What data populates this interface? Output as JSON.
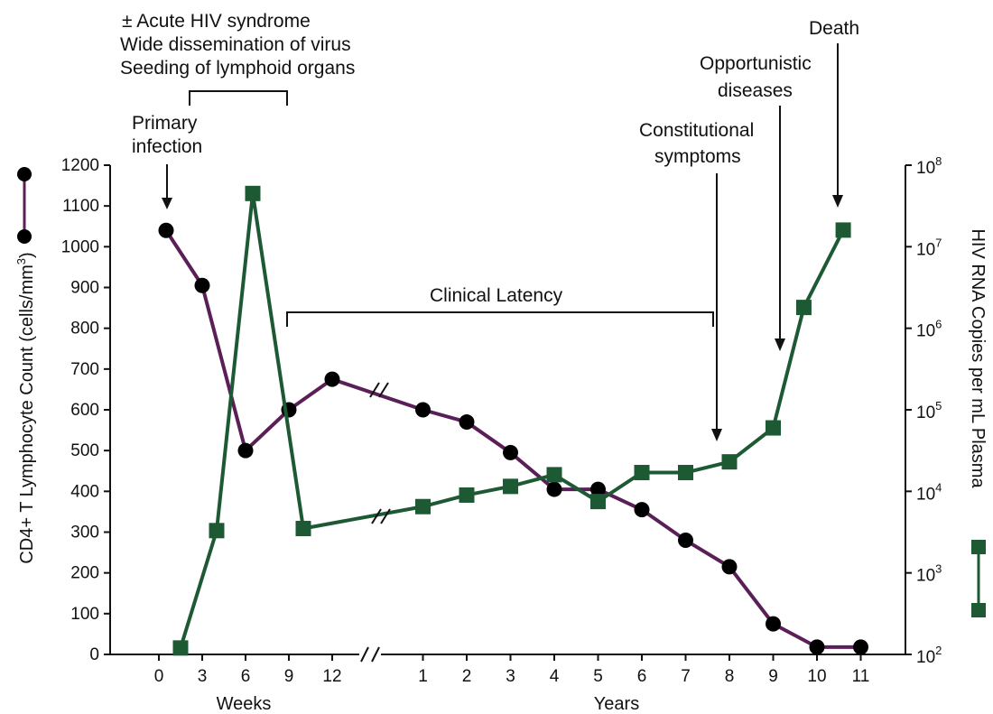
{
  "chart_data": {
    "type": "line",
    "dual_axis": true,
    "annotations": {
      "acute_1": "± Acute HIV syndrome",
      "acute_2": "Wide dissemination of virus",
      "acute_3": "Seeding of lymphoid organs",
      "primary_1": "Primary",
      "primary_2": "infection",
      "latency": "Clinical Latency",
      "constitutional_1": "Constitutional",
      "constitutional_2": "symptoms",
      "opportunistic_1": "Opportunistic",
      "opportunistic_2": "diseases",
      "death": "Death"
    },
    "x_axis": {
      "weeks_label": "Weeks",
      "years_label": "Years",
      "week_ticks": [
        "0",
        "3",
        "6",
        "9",
        "12"
      ],
      "year_ticks": [
        "1",
        "2",
        "3",
        "4",
        "5",
        "6",
        "7",
        "8",
        "9",
        "10",
        "11"
      ]
    },
    "y_left": {
      "label": "CD4+ T Lymphocyte Count (cells/mm",
      "label_sup": "3",
      "label_end": ")",
      "ylim": [
        0,
        1200
      ],
      "ticks": [
        "0",
        "100",
        "200",
        "300",
        "400",
        "500",
        "600",
        "700",
        "800",
        "900",
        "1000",
        "1100",
        "1200"
      ]
    },
    "y_right": {
      "label": "HIV RNA Copies per mL Plasma",
      "scale": "log",
      "ylim_exponent": [
        2,
        8
      ],
      "tick_base": "10",
      "tick_exponents": [
        "2",
        "3",
        "4",
        "5",
        "6",
        "7",
        "8"
      ]
    },
    "series": [
      {
        "key": "cd4",
        "axis": "left",
        "color": "#5b1f57",
        "marker_color": "#000000",
        "marker": "circle",
        "points": [
          {
            "x": "wk 0.5",
            "y": 1040
          },
          {
            "x": "wk 3",
            "y": 905
          },
          {
            "x": "wk 6",
            "y": 500
          },
          {
            "x": "wk 9",
            "y": 600
          },
          {
            "x": "wk 12",
            "y": 675
          },
          {
            "x": "yr 1",
            "y": 600
          },
          {
            "x": "yr 2",
            "y": 570
          },
          {
            "x": "yr 3",
            "y": 495
          },
          {
            "x": "yr 4",
            "y": 405
          },
          {
            "x": "yr 5",
            "y": 405
          },
          {
            "x": "yr 6",
            "y": 355
          },
          {
            "x": "yr 7",
            "y": 280
          },
          {
            "x": "yr 8",
            "y": 215
          },
          {
            "x": "yr 9",
            "y": 75
          },
          {
            "x": "yr 10",
            "y": 18
          },
          {
            "x": "yr 11",
            "y": 18
          }
        ]
      },
      {
        "key": "rna",
        "axis": "right",
        "color": "#1d5a34",
        "marker_color": "#1d5a34",
        "marker": "square",
        "points": [
          {
            "x": "wk 1.5",
            "y": 120
          },
          {
            "x": "wk 4",
            "y": 3300
          },
          {
            "x": "wk 6.5",
            "y": 45000000
          },
          {
            "x": "wk 10",
            "y": 3500
          },
          {
            "x": "yr 1",
            "y": 6500
          },
          {
            "x": "yr 2",
            "y": 9000
          },
          {
            "x": "yr 3",
            "y": 11500
          },
          {
            "x": "yr 4",
            "y": 16000
          },
          {
            "x": "yr 5",
            "y": 7500
          },
          {
            "x": "yr 6",
            "y": 17000
          },
          {
            "x": "yr 7",
            "y": 17000
          },
          {
            "x": "yr 8",
            "y": 23000
          },
          {
            "x": "yr 9",
            "y": 60000
          },
          {
            "x": "yr 9.7",
            "y": 1800000
          },
          {
            "x": "yr 10.6",
            "y": 16000000
          }
        ]
      }
    ]
  }
}
